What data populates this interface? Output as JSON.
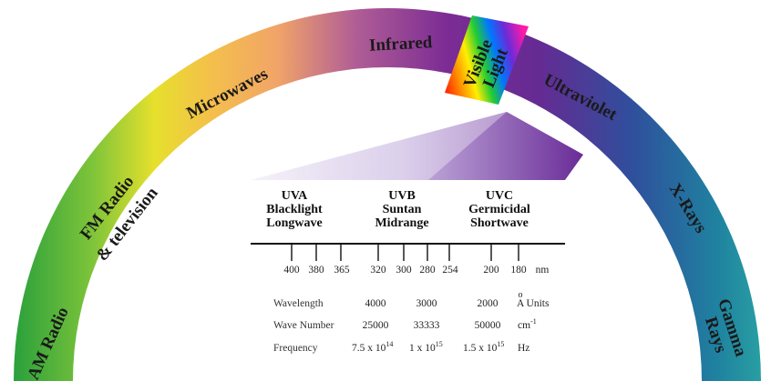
{
  "spectrum": {
    "labels": [
      {
        "id": "am-radio",
        "text": "AM Radio",
        "color": "#1a1a1a"
      },
      {
        "id": "fm-radio-1",
        "text": "FM Radio",
        "color": "#1a1a1a"
      },
      {
        "id": "fm-radio-2",
        "text": "& television",
        "color": "#1a1a1a"
      },
      {
        "id": "microwaves",
        "text": "Microwaves",
        "color": "#1a1a1a"
      },
      {
        "id": "infrared",
        "text": "Infrared",
        "color": "#1a1a1a"
      },
      {
        "id": "visible-1",
        "text": "Visible",
        "color": "#1a1a1a"
      },
      {
        "id": "visible-2",
        "text": "Light",
        "color": "#1a1a1a"
      },
      {
        "id": "ultraviolet",
        "text": "Ultraviolet",
        "color": "#1a1a1a"
      },
      {
        "id": "x-rays",
        "text": "X-Rays",
        "color": "#1a1a1a"
      },
      {
        "id": "gamma-1",
        "text": "Gamma",
        "color": "#1a1a1a"
      },
      {
        "id": "gamma-2",
        "text": "Rays",
        "color": "#1a1a1a"
      }
    ]
  },
  "uv_bands": [
    {
      "id": "uva",
      "lines": [
        "UVA",
        "Blacklight",
        "Longwave"
      ]
    },
    {
      "id": "uvb",
      "lines": [
        "UVB",
        "Suntan",
        "Midrange"
      ]
    },
    {
      "id": "uvc",
      "lines": [
        "UVC",
        "Germicidal",
        "Shortwave"
      ]
    }
  ],
  "scale": {
    "ticks": [
      "400",
      "380",
      "365",
      "320",
      "300",
      "280",
      "254",
      "200",
      "180"
    ],
    "unit": "nm"
  },
  "table": {
    "rows": [
      {
        "label": "Wavelength",
        "values": [
          {
            "base": "4000"
          },
          {
            "base": "3000"
          },
          {
            "base": "2000"
          }
        ],
        "unit": {
          "base": "A Units",
          "mark": "o"
        }
      },
      {
        "label": "Wave Number",
        "values": [
          {
            "base": "25000"
          },
          {
            "base": "33333"
          },
          {
            "base": "50000"
          }
        ],
        "unit": {
          "base": "cm",
          "exp": "-1"
        }
      },
      {
        "label": "Frequency",
        "values": [
          {
            "base": "7.5 x 10",
            "exp": "14"
          },
          {
            "base": "1 x 10",
            "exp": "15"
          },
          {
            "base": "1.5 x 10",
            "exp": "15"
          }
        ],
        "unit": {
          "base": "Hz"
        }
      }
    ]
  }
}
